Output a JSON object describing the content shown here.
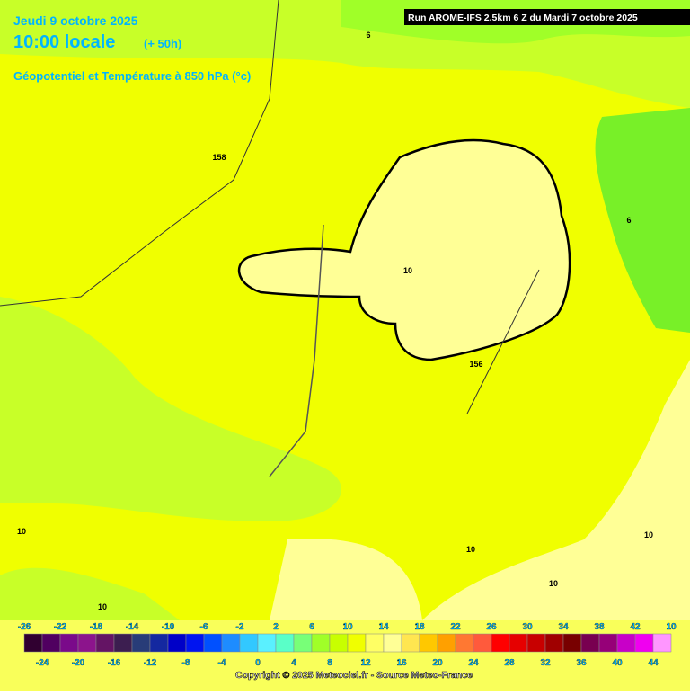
{
  "header": {
    "date": "Jeudi 9 octobre 2025",
    "time": "10:00 locale",
    "lead": "(+ 50h)",
    "subtitle": "Géopotentiel et Température à 850 hPa (°c)",
    "run": "Run AROME-IFS 2.5km 6 Z du Mardi 7 octobre 2025"
  },
  "map": {
    "labels": [
      "6",
      "158",
      "10",
      "6",
      "156",
      "10",
      "10",
      "10",
      "10",
      "10"
    ]
  },
  "legend": {
    "top_labels": [
      -26,
      -22,
      -18,
      -14,
      -10,
      -6,
      -2,
      2,
      6,
      10,
      14,
      18,
      22,
      26,
      30,
      34,
      38,
      42,
      10
    ],
    "bottom_labels": [
      -24,
      -20,
      -16,
      -12,
      -8,
      -4,
      0,
      4,
      8,
      12,
      16,
      20,
      24,
      28,
      32,
      36,
      40,
      44
    ],
    "colors": [
      "#300030",
      "#500060",
      "#7a0a8a",
      "#8c148c",
      "#641464",
      "#3c1e50",
      "#283c78",
      "#1428a0",
      "#0000c8",
      "#0014f0",
      "#0050ff",
      "#1e8cff",
      "#32c8ff",
      "#5af0ff",
      "#5affc8",
      "#78ff78",
      "#a0ff28",
      "#c8ff00",
      "#f0ff00",
      "#ffff64",
      "#ffff96",
      "#ffe650",
      "#ffc800",
      "#ffa000",
      "#ff7832",
      "#ff5a3c",
      "#ff0000",
      "#e60000",
      "#c80000",
      "#a00000",
      "#780000",
      "#780050",
      "#960078",
      "#c800c8",
      "#f000f0",
      "#ff96ff"
    ]
  },
  "footer": {
    "copyright": "Copyright © 2025 Meteociel.fr - Source Meteo-France"
  }
}
